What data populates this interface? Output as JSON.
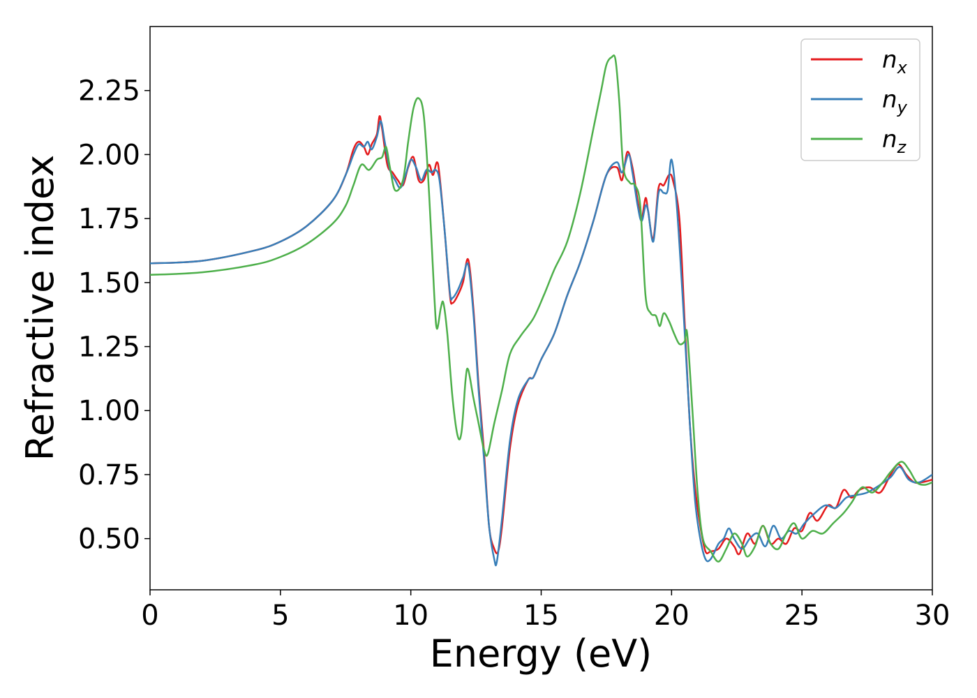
{
  "chart_data": {
    "type": "line",
    "xlabel": "Energy (eV)",
    "ylabel": "Refractive index",
    "xlim": [
      0,
      30
    ],
    "ylim": [
      0.3,
      2.5
    ],
    "xticks": [
      "0",
      "5",
      "10",
      "15",
      "20",
      "25",
      "30"
    ],
    "yticks": [
      "0.50",
      "0.75",
      "1.00",
      "1.25",
      "1.50",
      "1.75",
      "2.00",
      "2.25"
    ],
    "grid": false,
    "legend_position": "top-right",
    "series": [
      {
        "name": "n",
        "subscript": "x",
        "color": "#e41a1c",
        "points": [
          [
            0,
            1.575
          ],
          [
            2,
            1.585
          ],
          [
            4,
            1.625
          ],
          [
            5,
            1.66
          ],
          [
            6,
            1.72
          ],
          [
            7,
            1.82
          ],
          [
            7.5,
            1.92
          ],
          [
            7.8,
            2.02
          ],
          [
            8,
            2.05
          ],
          [
            8.2,
            2.03
          ],
          [
            8.35,
            2.0
          ],
          [
            8.5,
            2.04
          ],
          [
            8.7,
            2.08
          ],
          [
            8.8,
            2.15
          ],
          [
            8.9,
            2.1
          ],
          [
            9.1,
            1.96
          ],
          [
            9.3,
            1.93
          ],
          [
            9.5,
            1.9
          ],
          [
            9.7,
            1.88
          ],
          [
            9.9,
            1.95
          ],
          [
            10.1,
            1.99
          ],
          [
            10.3,
            1.9
          ],
          [
            10.5,
            1.9
          ],
          [
            10.7,
            1.96
          ],
          [
            10.85,
            1.92
          ],
          [
            11,
            1.97
          ],
          [
            11.1,
            1.92
          ],
          [
            11.3,
            1.7
          ],
          [
            11.5,
            1.45
          ],
          [
            11.6,
            1.42
          ],
          [
            11.8,
            1.45
          ],
          [
            12.0,
            1.5
          ],
          [
            12.2,
            1.59
          ],
          [
            12.4,
            1.4
          ],
          [
            12.6,
            1.1
          ],
          [
            12.8,
            0.85
          ],
          [
            13.0,
            0.55
          ],
          [
            13.2,
            0.46
          ],
          [
            13.35,
            0.45
          ],
          [
            13.5,
            0.55
          ],
          [
            13.8,
            0.85
          ],
          [
            14.1,
            1.02
          ],
          [
            14.5,
            1.12
          ],
          [
            14.7,
            1.13
          ],
          [
            15,
            1.2
          ],
          [
            15.5,
            1.3
          ],
          [
            16,
            1.45
          ],
          [
            16.5,
            1.58
          ],
          [
            17,
            1.74
          ],
          [
            17.5,
            1.92
          ],
          [
            17.9,
            1.95
          ],
          [
            18.1,
            1.9
          ],
          [
            18.3,
            2.01
          ],
          [
            18.5,
            1.95
          ],
          [
            18.7,
            1.82
          ],
          [
            18.85,
            1.75
          ],
          [
            19.0,
            1.83
          ],
          [
            19.1,
            1.78
          ],
          [
            19.3,
            1.67
          ],
          [
            19.5,
            1.87
          ],
          [
            19.7,
            1.88
          ],
          [
            19.9,
            1.92
          ],
          [
            20.05,
            1.9
          ],
          [
            20.3,
            1.75
          ],
          [
            20.5,
            1.35
          ],
          [
            20.7,
            0.95
          ],
          [
            20.9,
            0.7
          ],
          [
            21.1,
            0.55
          ],
          [
            21.3,
            0.45
          ],
          [
            21.5,
            0.45
          ],
          [
            21.8,
            0.46
          ],
          [
            22.1,
            0.5
          ],
          [
            22.4,
            0.47
          ],
          [
            22.6,
            0.44
          ],
          [
            22.9,
            0.52
          ],
          [
            23.2,
            0.48
          ],
          [
            23.5,
            0.55
          ],
          [
            23.8,
            0.48
          ],
          [
            24.1,
            0.5
          ],
          [
            24.4,
            0.48
          ],
          [
            24.7,
            0.54
          ],
          [
            25,
            0.53
          ],
          [
            25.3,
            0.6
          ],
          [
            25.6,
            0.57
          ],
          [
            26,
            0.63
          ],
          [
            26.3,
            0.62
          ],
          [
            26.6,
            0.69
          ],
          [
            26.9,
            0.66
          ],
          [
            27.2,
            0.69
          ],
          [
            27.6,
            0.7
          ],
          [
            28,
            0.68
          ],
          [
            28.4,
            0.75
          ],
          [
            28.7,
            0.79
          ],
          [
            29,
            0.75
          ],
          [
            29.3,
            0.72
          ],
          [
            29.6,
            0.72
          ],
          [
            30,
            0.73
          ]
        ]
      },
      {
        "name": "n",
        "subscript": "y",
        "color": "#377eb8",
        "points": [
          [
            0,
            1.575
          ],
          [
            2,
            1.585
          ],
          [
            4,
            1.625
          ],
          [
            5,
            1.66
          ],
          [
            6,
            1.72
          ],
          [
            7,
            1.82
          ],
          [
            7.5,
            1.92
          ],
          [
            7.8,
            2.0
          ],
          [
            8,
            2.04
          ],
          [
            8.2,
            2.03
          ],
          [
            8.35,
            2.05
          ],
          [
            8.5,
            2.02
          ],
          [
            8.7,
            2.07
          ],
          [
            8.85,
            2.13
          ],
          [
            9.0,
            2.05
          ],
          [
            9.2,
            1.94
          ],
          [
            9.4,
            1.9
          ],
          [
            9.6,
            1.87
          ],
          [
            9.8,
            1.92
          ],
          [
            10.0,
            1.98
          ],
          [
            10.2,
            1.95
          ],
          [
            10.4,
            1.9
          ],
          [
            10.6,
            1.94
          ],
          [
            10.8,
            1.93
          ],
          [
            10.95,
            1.94
          ],
          [
            11.1,
            1.9
          ],
          [
            11.3,
            1.7
          ],
          [
            11.5,
            1.46
          ],
          [
            11.6,
            1.44
          ],
          [
            11.8,
            1.47
          ],
          [
            12.0,
            1.52
          ],
          [
            12.2,
            1.57
          ],
          [
            12.4,
            1.38
          ],
          [
            12.6,
            1.08
          ],
          [
            12.8,
            0.82
          ],
          [
            13.0,
            0.55
          ],
          [
            13.2,
            0.42
          ],
          [
            13.3,
            0.41
          ],
          [
            13.5,
            0.58
          ],
          [
            13.8,
            0.88
          ],
          [
            14.1,
            1.04
          ],
          [
            14.5,
            1.12
          ],
          [
            14.7,
            1.13
          ],
          [
            15,
            1.2
          ],
          [
            15.5,
            1.3
          ],
          [
            16,
            1.45
          ],
          [
            16.5,
            1.58
          ],
          [
            17,
            1.74
          ],
          [
            17.5,
            1.92
          ],
          [
            17.9,
            1.97
          ],
          [
            18.1,
            1.93
          ],
          [
            18.35,
            2.0
          ],
          [
            18.5,
            1.93
          ],
          [
            18.7,
            1.8
          ],
          [
            18.85,
            1.74
          ],
          [
            19.0,
            1.8
          ],
          [
            19.1,
            1.78
          ],
          [
            19.3,
            1.66
          ],
          [
            19.5,
            1.85
          ],
          [
            19.7,
            1.85
          ],
          [
            19.85,
            1.86
          ],
          [
            20.0,
            1.98
          ],
          [
            20.2,
            1.8
          ],
          [
            20.45,
            1.4
          ],
          [
            20.7,
            0.95
          ],
          [
            20.9,
            0.65
          ],
          [
            21.1,
            0.5
          ],
          [
            21.3,
            0.42
          ],
          [
            21.5,
            0.42
          ],
          [
            21.8,
            0.48
          ],
          [
            22.0,
            0.5
          ],
          [
            22.2,
            0.54
          ],
          [
            22.4,
            0.5
          ],
          [
            22.7,
            0.46
          ],
          [
            23.0,
            0.5
          ],
          [
            23.3,
            0.52
          ],
          [
            23.6,
            0.47
          ],
          [
            23.9,
            0.55
          ],
          [
            24.2,
            0.5
          ],
          [
            24.5,
            0.53
          ],
          [
            24.8,
            0.52
          ],
          [
            25.1,
            0.56
          ],
          [
            25.5,
            0.6
          ],
          [
            25.9,
            0.63
          ],
          [
            26.3,
            0.62
          ],
          [
            26.7,
            0.66
          ],
          [
            27.1,
            0.67
          ],
          [
            27.5,
            0.68
          ],
          [
            28,
            0.71
          ],
          [
            28.4,
            0.74
          ],
          [
            28.75,
            0.78
          ],
          [
            29.1,
            0.73
          ],
          [
            29.5,
            0.72
          ],
          [
            30,
            0.75
          ]
        ]
      },
      {
        "name": "n",
        "subscript": "z",
        "color": "#4daf4a",
        "points": [
          [
            0,
            1.53
          ],
          [
            2,
            1.54
          ],
          [
            4,
            1.57
          ],
          [
            5,
            1.6
          ],
          [
            6,
            1.65
          ],
          [
            7,
            1.73
          ],
          [
            7.5,
            1.8
          ],
          [
            7.8,
            1.88
          ],
          [
            8.1,
            1.96
          ],
          [
            8.4,
            1.94
          ],
          [
            8.7,
            1.98
          ],
          [
            8.9,
            1.99
          ],
          [
            9.05,
            2.03
          ],
          [
            9.2,
            1.95
          ],
          [
            9.4,
            1.86
          ],
          [
            9.7,
            1.9
          ],
          [
            9.9,
            2.05
          ],
          [
            10.1,
            2.18
          ],
          [
            10.3,
            2.22
          ],
          [
            10.5,
            2.15
          ],
          [
            10.7,
            1.85
          ],
          [
            10.9,
            1.45
          ],
          [
            11.0,
            1.32
          ],
          [
            11.15,
            1.4
          ],
          [
            11.25,
            1.42
          ],
          [
            11.4,
            1.3
          ],
          [
            11.6,
            1.05
          ],
          [
            11.8,
            0.9
          ],
          [
            11.95,
            0.92
          ],
          [
            12.1,
            1.12
          ],
          [
            12.2,
            1.16
          ],
          [
            12.4,
            1.05
          ],
          [
            12.6,
            0.95
          ],
          [
            12.8,
            0.85
          ],
          [
            12.95,
            0.83
          ],
          [
            13.2,
            0.95
          ],
          [
            13.5,
            1.08
          ],
          [
            13.8,
            1.22
          ],
          [
            14.2,
            1.29
          ],
          [
            14.7,
            1.36
          ],
          [
            15.1,
            1.45
          ],
          [
            15.5,
            1.55
          ],
          [
            16,
            1.66
          ],
          [
            16.5,
            1.85
          ],
          [
            17,
            2.1
          ],
          [
            17.3,
            2.25
          ],
          [
            17.5,
            2.35
          ],
          [
            17.7,
            2.38
          ],
          [
            17.85,
            2.37
          ],
          [
            18.0,
            2.2
          ],
          [
            18.15,
            1.95
          ],
          [
            18.4,
            1.89
          ],
          [
            18.6,
            1.88
          ],
          [
            18.8,
            1.8
          ],
          [
            19.0,
            1.45
          ],
          [
            19.2,
            1.38
          ],
          [
            19.4,
            1.37
          ],
          [
            19.55,
            1.33
          ],
          [
            19.7,
            1.38
          ],
          [
            19.9,
            1.35
          ],
          [
            20.1,
            1.3
          ],
          [
            20.3,
            1.26
          ],
          [
            20.5,
            1.27
          ],
          [
            20.6,
            1.3
          ],
          [
            20.8,
            1.0
          ],
          [
            21.0,
            0.68
          ],
          [
            21.2,
            0.5
          ],
          [
            21.5,
            0.45
          ],
          [
            21.8,
            0.41
          ],
          [
            22.1,
            0.46
          ],
          [
            22.4,
            0.52
          ],
          [
            22.7,
            0.48
          ],
          [
            22.9,
            0.43
          ],
          [
            23.2,
            0.47
          ],
          [
            23.5,
            0.55
          ],
          [
            23.8,
            0.48
          ],
          [
            24.1,
            0.46
          ],
          [
            24.4,
            0.52
          ],
          [
            24.7,
            0.56
          ],
          [
            25,
            0.5
          ],
          [
            25.4,
            0.53
          ],
          [
            25.8,
            0.52
          ],
          [
            26.2,
            0.56
          ],
          [
            26.6,
            0.6
          ],
          [
            26.9,
            0.64
          ],
          [
            27.3,
            0.7
          ],
          [
            27.7,
            0.68
          ],
          [
            28.1,
            0.72
          ],
          [
            28.4,
            0.76
          ],
          [
            28.8,
            0.8
          ],
          [
            29.1,
            0.77
          ],
          [
            29.4,
            0.72
          ],
          [
            29.7,
            0.71
          ],
          [
            30,
            0.72
          ]
        ]
      }
    ]
  }
}
